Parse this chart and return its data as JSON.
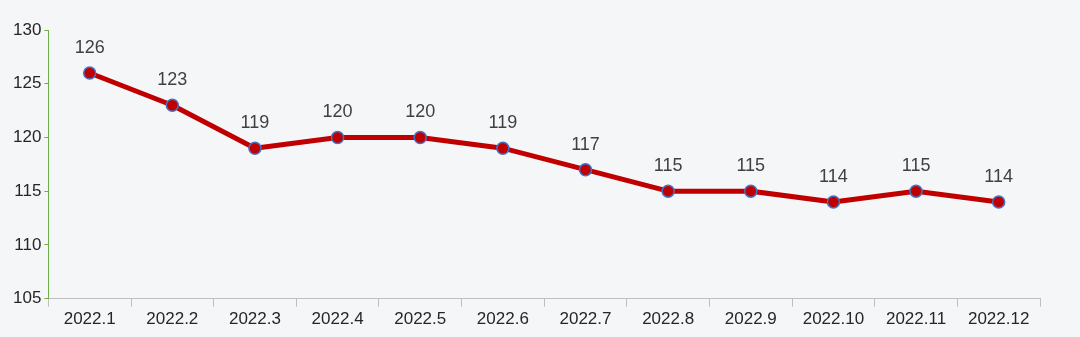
{
  "chart_data": {
    "type": "line",
    "categories": [
      "2022.1",
      "2022.2",
      "2022.3",
      "2022.4",
      "2022.5",
      "2022.6",
      "2022.7",
      "2022.8",
      "2022.9",
      "2022.10",
      "2022.11",
      "2022.12"
    ],
    "series": [
      {
        "color": "#c00000",
        "values": [
          126,
          123,
          119,
          120,
          120,
          119,
          117,
          115,
          115,
          114,
          115,
          114
        ]
      }
    ],
    "ylim": [
      105,
      130
    ],
    "yticks": [
      105,
      110,
      115,
      120,
      125,
      130
    ],
    "grid": false,
    "legend": false,
    "marker": "circle",
    "line_style": "solid",
    "data_labels": true
  }
}
